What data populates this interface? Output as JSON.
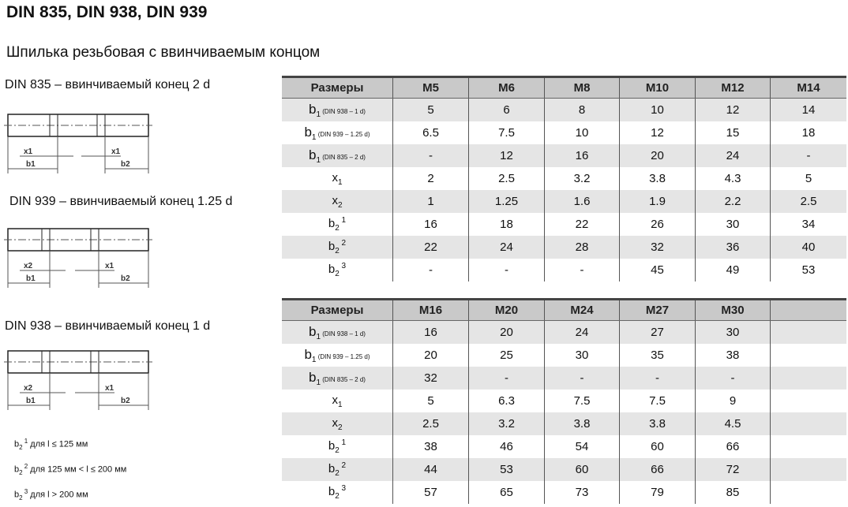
{
  "title": "DIN 835, DIN 938, DIN 939",
  "subtitle": "Шпилька резьбовая с ввинчиваемым концом",
  "diagrams": [
    {
      "label": "DIN 835 – ввинчиваемый конец 2 d",
      "dims": [
        "x1",
        "x1",
        "b1",
        "b2"
      ]
    },
    {
      "label": "DIN 939 – ввинчиваемый конец 1.25 d",
      "dims": [
        "x2",
        "x1",
        "b1",
        "b2"
      ]
    },
    {
      "label": "DIN 938 – ввинчиваемый конец 1 d",
      "dims": [
        "x2",
        "x1",
        "b1",
        "b2"
      ]
    }
  ],
  "notes": [
    {
      "base": "b",
      "sub": "2",
      "sup": "1",
      "text": " для l ≤ 125 мм"
    },
    {
      "base": "b",
      "sub": "2",
      "sup": "2",
      "text": " для 125 мм < l ≤ 200 мм"
    },
    {
      "base": "b",
      "sub": "2",
      "sup": "3",
      "text": " для l > 200 мм"
    }
  ],
  "row_labels": [
    {
      "base": "b",
      "sub": "1",
      "note": " (DIN 938 – 1 d)"
    },
    {
      "base": "b",
      "sub": "1",
      "note": " (DIN 939 – 1.25 d)"
    },
    {
      "base": "b",
      "sub": "1",
      "note": " (DIN 835 – 2 d)"
    },
    {
      "base": "x",
      "sub": "1",
      "note": ""
    },
    {
      "base": "x",
      "sub": "2",
      "note": ""
    },
    {
      "base": "b",
      "sub": "2",
      "sup": "1"
    },
    {
      "base": "b",
      "sub": "2",
      "sup": "2"
    },
    {
      "base": "b",
      "sub": "2",
      "sup": "3"
    }
  ],
  "tables": [
    {
      "header": [
        "Размеры",
        "M5",
        "M6",
        "M8",
        "M10",
        "M12",
        "M14"
      ],
      "rows": [
        [
          "5",
          "6",
          "8",
          "10",
          "12",
          "14"
        ],
        [
          "6.5",
          "7.5",
          "10",
          "12",
          "15",
          "18"
        ],
        [
          "-",
          "12",
          "16",
          "20",
          "24",
          "-"
        ],
        [
          "2",
          "2.5",
          "3.2",
          "3.8",
          "4.3",
          "5"
        ],
        [
          "1",
          "1.25",
          "1.6",
          "1.9",
          "2.2",
          "2.5"
        ],
        [
          "16",
          "18",
          "22",
          "26",
          "30",
          "34"
        ],
        [
          "22",
          "24",
          "28",
          "32",
          "36",
          "40"
        ],
        [
          "-",
          "-",
          "-",
          "45",
          "49",
          "53"
        ]
      ]
    },
    {
      "header": [
        "Размеры",
        "M16",
        "M20",
        "M24",
        "M27",
        "M30",
        ""
      ],
      "rows": [
        [
          "16",
          "20",
          "24",
          "27",
          "30",
          ""
        ],
        [
          "20",
          "25",
          "30",
          "35",
          "38",
          ""
        ],
        [
          "32",
          "-",
          "-",
          "-",
          "-",
          ""
        ],
        [
          "5",
          "6.3",
          "7.5",
          "7.5",
          "9",
          ""
        ],
        [
          "2.5",
          "3.2",
          "3.8",
          "3.8",
          "4.5",
          ""
        ],
        [
          "38",
          "46",
          "54",
          "60",
          "66",
          ""
        ],
        [
          "44",
          "53",
          "60",
          "66",
          "72",
          ""
        ],
        [
          "57",
          "65",
          "73",
          "79",
          "85",
          ""
        ]
      ]
    }
  ]
}
